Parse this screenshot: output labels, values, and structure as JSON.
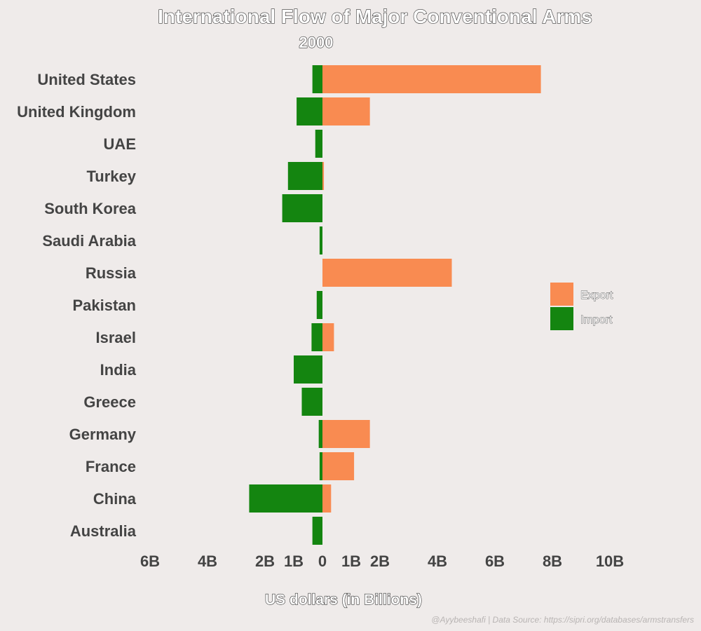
{
  "chart_data": {
    "type": "bar",
    "orientation": "horizontal",
    "layout": "diverging",
    "title": "International Flow of Major Conventional Arms",
    "subtitle": "2000",
    "xlabel": "US dollars (in Billions)",
    "source_note": "@Ayybeeshafi | Data Source: https://sipri.org/databases/armstransfers",
    "categories": [
      "United States",
      "United Kingdom",
      "UAE",
      "Turkey",
      "South Korea",
      "Saudi Arabia",
      "Russia",
      "Pakistan",
      "Israel",
      "India",
      "Greece",
      "Germany",
      "France",
      "China",
      "Australia"
    ],
    "series": [
      {
        "name": "Export",
        "color": "#F98B51",
        "values": [
          7.6,
          1.65,
          0,
          0.05,
          0,
          0,
          4.5,
          0,
          0.4,
          0,
          0,
          1.65,
          1.1,
          0.3,
          0
        ]
      },
      {
        "name": "Import",
        "color": "#148510",
        "values": [
          0.35,
          0.9,
          0.25,
          1.2,
          1.4,
          0.1,
          0,
          0.2,
          0.38,
          1.0,
          0.72,
          0.13,
          0.1,
          2.55,
          0.35
        ]
      }
    ],
    "x_ticks": [
      {
        "value": -6,
        "label": "6B"
      },
      {
        "value": -4,
        "label": "4B"
      },
      {
        "value": -2,
        "label": "2B"
      },
      {
        "value": -1,
        "label": "1B"
      },
      {
        "value": 0,
        "label": "0"
      },
      {
        "value": 1,
        "label": "1B"
      },
      {
        "value": 2,
        "label": "2B"
      },
      {
        "value": 4,
        "label": "4B"
      },
      {
        "value": 6,
        "label": "6B"
      },
      {
        "value": 8,
        "label": "8B"
      },
      {
        "value": 10,
        "label": "10B"
      }
    ],
    "xlim": [
      -6,
      10
    ],
    "grid": false,
    "legend_position": "right"
  }
}
